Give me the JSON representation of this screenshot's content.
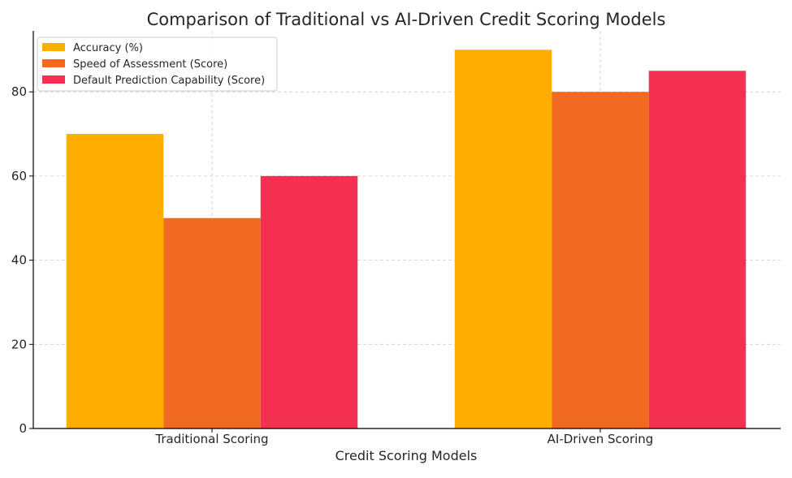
{
  "chart_data": {
    "type": "bar",
    "title": "Comparison of Traditional vs AI-Driven Credit Scoring Models",
    "xlabel": "Credit Scoring Models",
    "ylabel": "",
    "categories": [
      "Traditional Scoring",
      "AI-Driven Scoring"
    ],
    "series": [
      {
        "name": "Accuracy (%)",
        "color": "#FFAD01",
        "values": [
          70,
          90
        ]
      },
      {
        "name": "Speed of Assessment (Score)",
        "color": "#F26A21",
        "values": [
          50,
          80
        ]
      },
      {
        "name": "Default Prediction Capability (Score)",
        "color": "#F53152",
        "values": [
          60,
          85
        ]
      }
    ],
    "ylim": [
      0,
      94.5
    ],
    "yticks": [
      0,
      20,
      40,
      60,
      80
    ],
    "grid": true,
    "legend_position": "top-left"
  }
}
